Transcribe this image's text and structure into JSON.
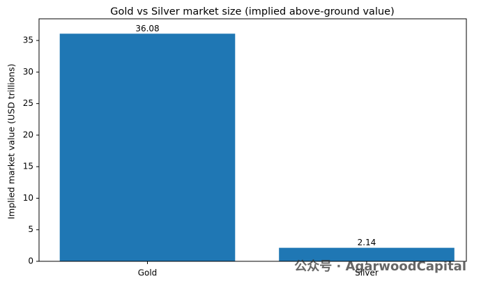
{
  "chart_data": {
    "type": "bar",
    "title": "Gold vs Silver market size (implied above-ground value)",
    "y_label": "Implied market value (USD trillions)",
    "categories": [
      "Gold",
      "Silver"
    ],
    "values": [
      36.08,
      2.14
    ],
    "color": "#1f77b4",
    "ylim": [
      0,
      37.884
    ],
    "yticks": [
      0,
      5,
      10,
      15,
      20,
      25,
      30,
      35
    ],
    "grid": false,
    "watermark": "公众号 · AgarwoodCapital"
  }
}
